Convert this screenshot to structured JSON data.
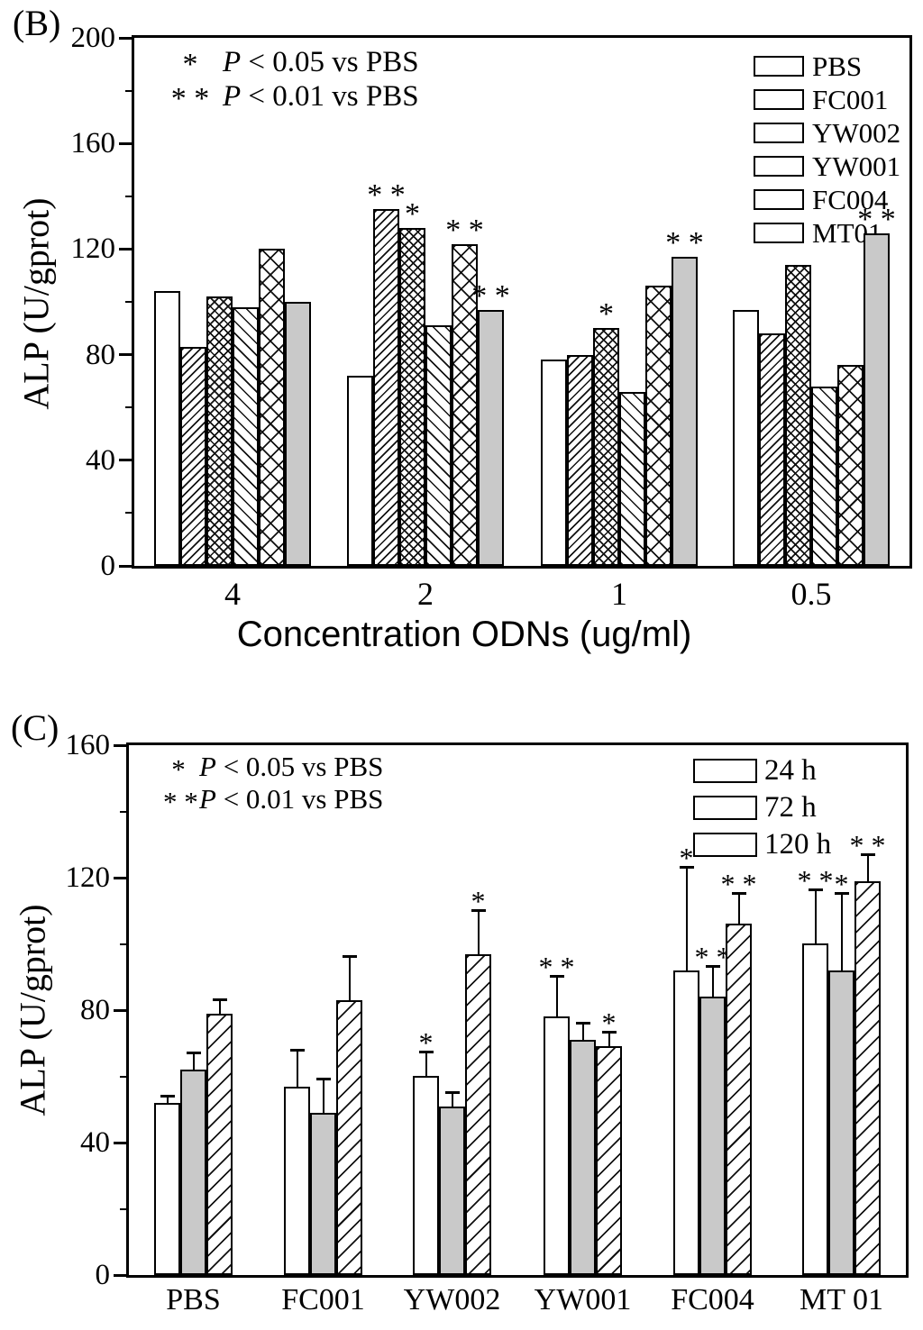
{
  "figure_bg": "#ffffff",
  "ink_color": "#000000",
  "gray_fill": "#c9c9c9",
  "panel_b": {
    "label": "(B)",
    "ylabel": "ALP (U/gprot)",
    "xlabel": "Concentration ODNs (ug/ml)",
    "annotations": [
      {
        "stars": "*",
        "p": "P",
        "rest": " < 0.05 vs PBS"
      },
      {
        "stars": "* *",
        "p": "P",
        "rest": " < 0.01 vs PBS"
      }
    ]
  },
  "panel_c": {
    "label": "(C)",
    "ylabel": "ALP (U/gprot)",
    "annotations": [
      {
        "stars": "*",
        "p": "P",
        "rest": " < 0.05 vs PBS"
      },
      {
        "stars": "* *",
        "p": "P",
        "rest": " < 0.01 vs PBS"
      }
    ]
  },
  "chart_data": [
    {
      "type": "bar",
      "panel": "B",
      "xlabel": "Concentration ODNs (ug/ml)",
      "ylabel": "ALP (U/gprot)",
      "ylim": [
        0,
        200
      ],
      "yticks": [
        0,
        40,
        80,
        120,
        160,
        200
      ],
      "yticks_minor": [
        20,
        60,
        100,
        140,
        180
      ],
      "categories": [
        "4",
        "2",
        "1",
        "0.5"
      ],
      "legend_position": "top-right",
      "grid": false,
      "significance_note": [
        "* P < 0.05 vs PBS",
        "** P < 0.01 vs PBS"
      ],
      "series": [
        {
          "name": "PBS",
          "hatch": "plain",
          "values": [
            104,
            72,
            78,
            97
          ],
          "sig": [
            "",
            "",
            "",
            ""
          ]
        },
        {
          "name": "FC001",
          "hatch": "diag-thin",
          "values": [
            83,
            135,
            80,
            88
          ],
          "sig": [
            "",
            "**",
            "",
            ""
          ]
        },
        {
          "name": "YW002",
          "hatch": "cross-dense",
          "values": [
            102,
            128,
            90,
            114
          ],
          "sig": [
            "",
            "*",
            "*",
            ""
          ]
        },
        {
          "name": "YW001",
          "hatch": "back-diag",
          "values": [
            98,
            91,
            66,
            68
          ],
          "sig": [
            "",
            "",
            "",
            ""
          ]
        },
        {
          "name": "FC004",
          "hatch": "cross-wide",
          "values": [
            120,
            122,
            106,
            76
          ],
          "sig": [
            "",
            "**",
            "",
            ""
          ]
        },
        {
          "name": "MT01",
          "hatch": "solid-gray",
          "values": [
            100,
            97,
            117,
            126
          ],
          "sig": [
            "",
            "**",
            "**",
            "**"
          ]
        }
      ]
    },
    {
      "type": "bar",
      "panel": "C",
      "ylabel": "ALP (U/gprot)",
      "ylim": [
        0,
        160
      ],
      "yticks": [
        0,
        40,
        80,
        120,
        160
      ],
      "yticks_minor": [
        20,
        60,
        100,
        140
      ],
      "categories": [
        "PBS",
        "FC001",
        "YW002",
        "YW001",
        "FC004",
        "MT 01"
      ],
      "legend_position": "top-right",
      "grid": false,
      "significance_note": [
        "* P < 0.05 vs PBS",
        "** P < 0.01 vs PBS"
      ],
      "series": [
        {
          "name": "24 h",
          "hatch": "plain",
          "values": [
            52,
            57,
            60,
            78,
            92,
            100
          ],
          "errors": [
            2,
            11,
            7,
            12,
            31,
            16
          ],
          "sig": [
            "",
            "",
            "*",
            "**",
            "*",
            "**"
          ]
        },
        {
          "name": "72 h",
          "hatch": "solid-gray",
          "values": [
            62,
            49,
            51,
            71,
            84,
            92
          ],
          "errors": [
            5,
            10,
            4,
            5,
            9,
            23
          ],
          "sig": [
            "",
            "",
            "",
            "",
            "**",
            "*"
          ]
        },
        {
          "name": "120 h",
          "hatch": "diag-wide",
          "values": [
            79,
            83,
            97,
            69,
            106,
            119
          ],
          "errors": [
            4,
            13,
            13,
            4,
            9,
            8
          ],
          "sig": [
            "",
            "",
            "*",
            "*",
            "**",
            "**"
          ]
        }
      ]
    }
  ]
}
